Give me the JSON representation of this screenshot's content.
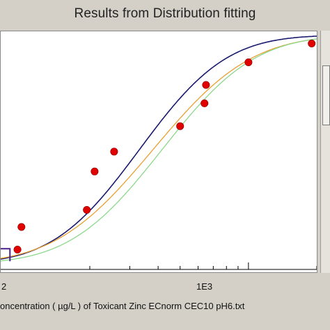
{
  "window": {
    "title": "Results from Distribution fitting"
  },
  "chart_data": {
    "type": "scatter",
    "title": "Results from Distribution fitting",
    "xlabel": "oncentration ( µg/L ) of Toxicant Zinc ECnorm CEC10 pH6.txt",
    "x_scale": "log",
    "xlim": [
      81,
      2000
    ],
    "ylim": [
      0,
      1
    ],
    "x_tick_labels": [
      "2",
      "1E3"
    ],
    "colors": {
      "points": "#e00000",
      "curve_dark": "#1a1a6e",
      "curve_orange": "#e8a030",
      "curve_green": "#8cd88c",
      "marker": "#4b1f8a"
    },
    "points": [
      {
        "x": 96,
        "y": 0.066
      },
      {
        "x": 100,
        "y": 0.171
      },
      {
        "x": 194,
        "y": 0.25
      },
      {
        "x": 210,
        "y": 0.428
      },
      {
        "x": 256,
        "y": 0.52
      },
      {
        "x": 500,
        "y": 0.638
      },
      {
        "x": 640,
        "y": 0.744
      },
      {
        "x": 650,
        "y": 0.829
      },
      {
        "x": 1000,
        "y": 0.934
      },
      {
        "x": 1900,
        "y": 1.021
      }
    ],
    "series": [
      {
        "color": "#1a1a6e",
        "mu": 2.52,
        "sigma": 0.3
      },
      {
        "color": "#e8a030",
        "mu": 2.58,
        "sigma": 0.34
      },
      {
        "color": "#8cd88c",
        "mu": 2.62,
        "sigma": 0.32
      }
    ],
    "marker_line": {
      "y": 0.07,
      "x_end": 89
    }
  },
  "scrollbar": {
    "orientation": "vertical"
  }
}
